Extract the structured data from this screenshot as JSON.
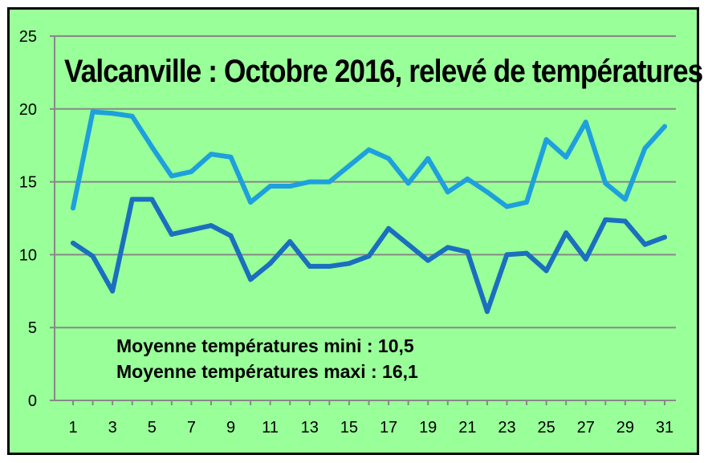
{
  "chart_data": {
    "type": "line",
    "title": "Valcanville : Octobre 2016, relevé de températures",
    "xlabel": "",
    "ylabel": "",
    "x": [
      1,
      2,
      3,
      4,
      5,
      6,
      7,
      8,
      9,
      10,
      11,
      12,
      13,
      14,
      15,
      16,
      17,
      18,
      19,
      20,
      21,
      22,
      23,
      24,
      25,
      26,
      27,
      28,
      29,
      30,
      31
    ],
    "x_tick_labels": [
      "1",
      "3",
      "5",
      "7",
      "9",
      "11",
      "13",
      "15",
      "17",
      "19",
      "21",
      "23",
      "25",
      "27",
      "29",
      "31"
    ],
    "y_tick_labels": [
      "0",
      "5",
      "10",
      "15",
      "20",
      "25"
    ],
    "ylim": [
      0,
      25
    ],
    "xlim": [
      1,
      31
    ],
    "grid": "horizontal",
    "legend": "none",
    "series": [
      {
        "color": "#1ea0dc",
        "values": [
          13.2,
          19.8,
          19.7,
          19.5,
          17.4,
          15.4,
          15.7,
          16.9,
          16.7,
          13.6,
          14.7,
          14.7,
          15.0,
          15.0,
          16.1,
          17.2,
          16.6,
          14.9,
          16.6,
          14.3,
          15.2,
          14.3,
          13.3,
          13.6,
          17.9,
          16.7,
          19.1,
          14.9,
          13.8,
          17.3,
          18.8
        ]
      },
      {
        "color": "#1a6fbe",
        "values": [
          10.8,
          9.9,
          7.5,
          13.8,
          13.8,
          11.4,
          11.7,
          12.0,
          11.3,
          8.3,
          9.4,
          10.9,
          9.2,
          9.2,
          9.4,
          9.9,
          11.8,
          10.7,
          9.6,
          10.5,
          10.2,
          6.1,
          10.0,
          10.1,
          8.9,
          11.5,
          9.7,
          12.4,
          12.3,
          10.7,
          11.2
        ]
      }
    ],
    "annotations": [
      "Moyenne températures mini : 10,5",
      "Moyenne températures maxi : 16,1"
    ],
    "colors": {
      "background": "#99ff99",
      "gridline": "#888888",
      "frame": "#000000"
    }
  }
}
